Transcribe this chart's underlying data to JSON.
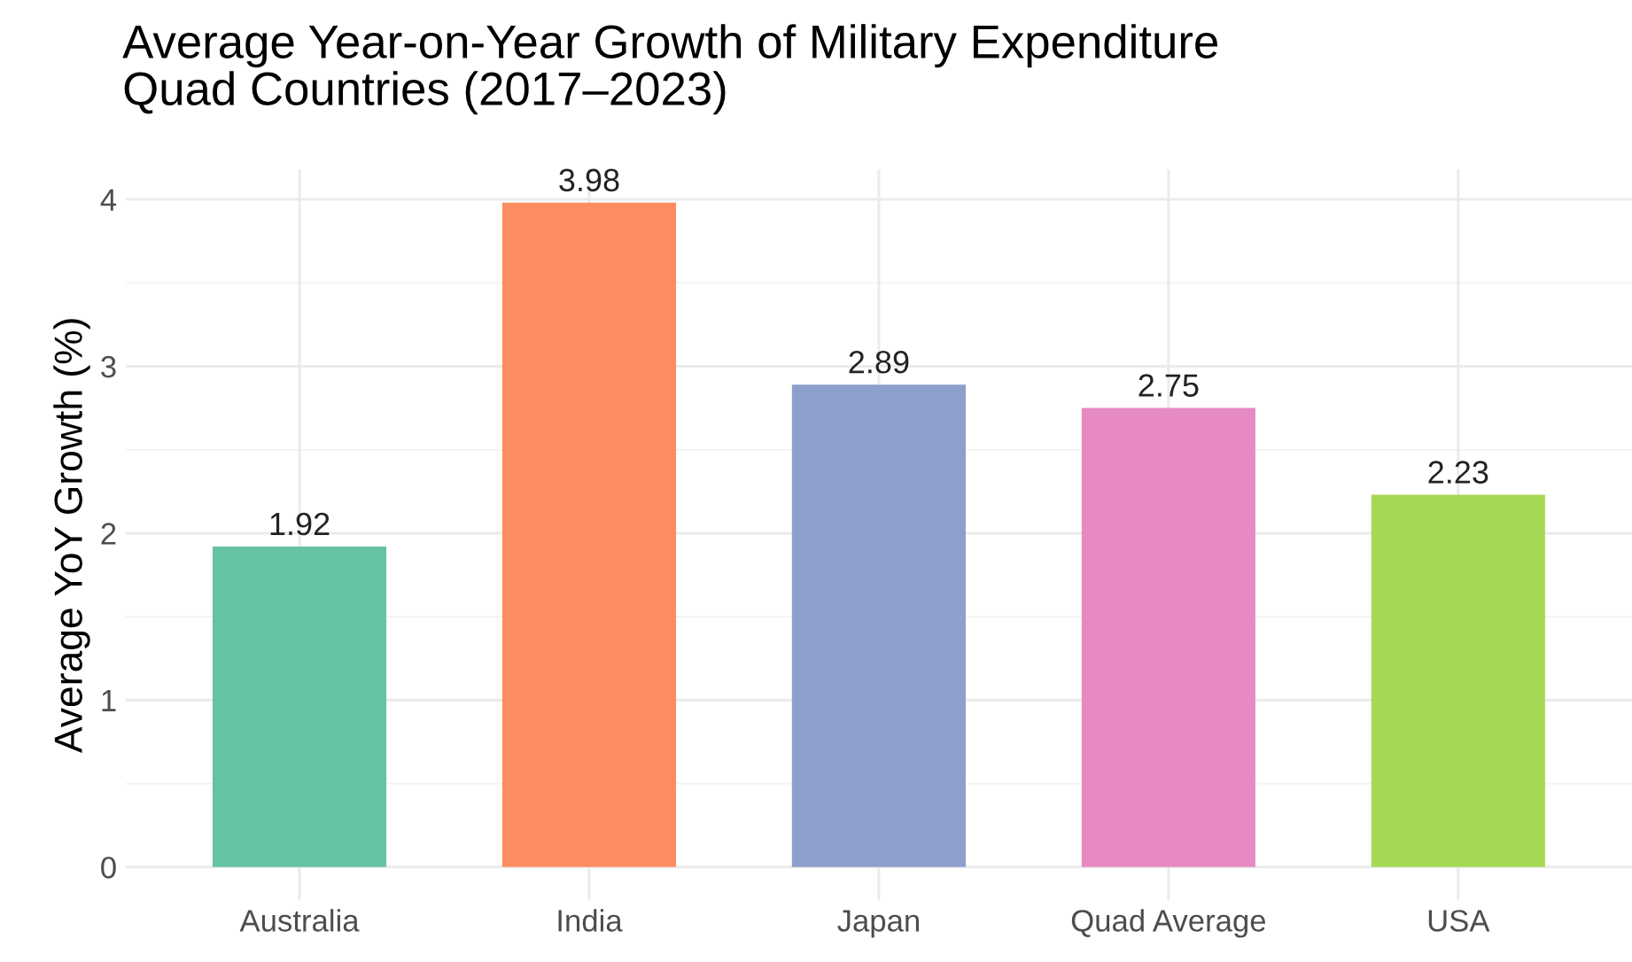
{
  "chart_data": {
    "type": "bar",
    "title": "Average Year-on-Year Growth of Military Expenditure\nQuad Countries (2017–2023)",
    "ylabel": "Average YoY Growth (%)",
    "categories": [
      "Australia",
      "India",
      "Japan",
      "Quad Average",
      "USA"
    ],
    "values": [
      1.92,
      3.98,
      2.89,
      2.75,
      2.23
    ],
    "colors": [
      "#66c2a5",
      "#fc8d62",
      "#8da0cb",
      "#e78ac3",
      "#a6d854"
    ],
    "ylim": [
      -0.2,
      4.18
    ],
    "yticks": [
      0,
      1,
      2,
      3,
      4
    ],
    "grid": true,
    "data_labels": true,
    "legend": false
  }
}
